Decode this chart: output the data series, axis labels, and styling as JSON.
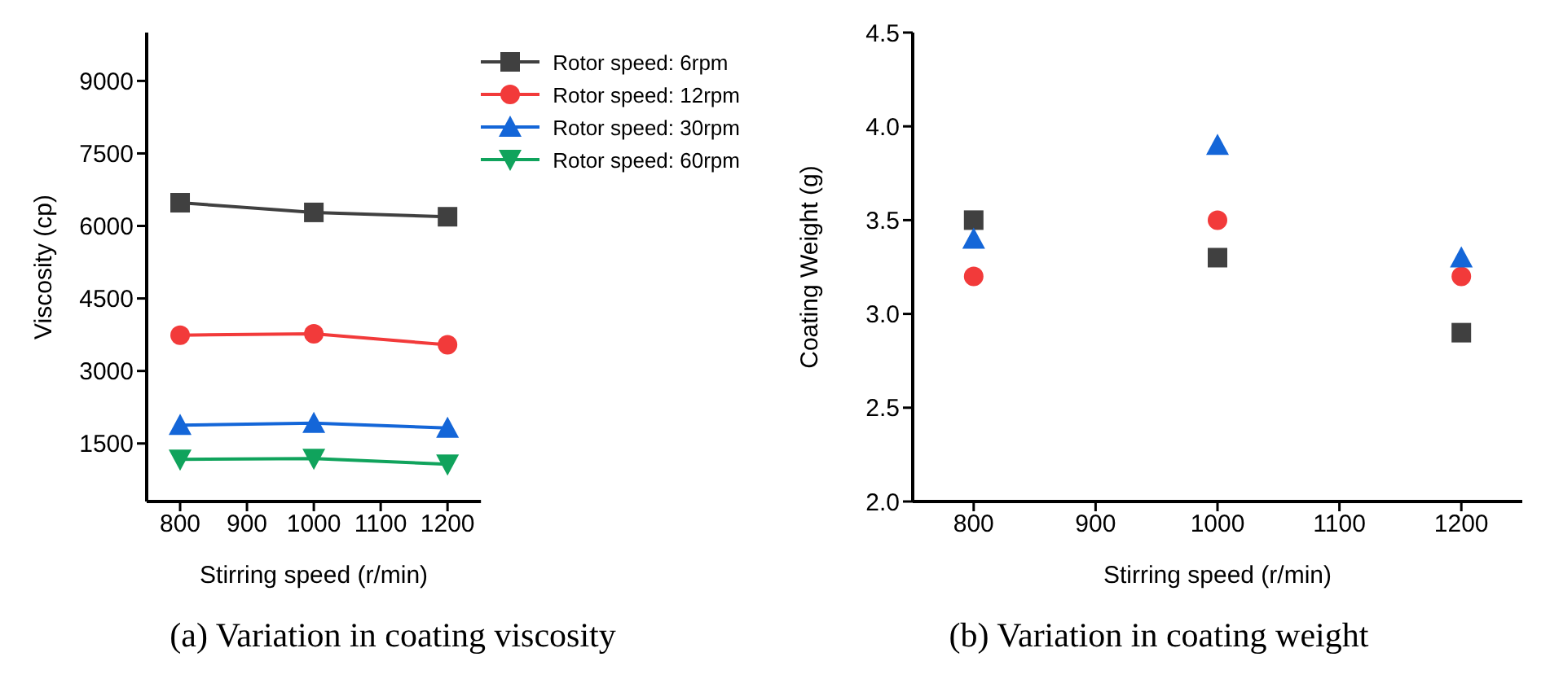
{
  "chart_data": [
    {
      "type": "line",
      "xlabel": "Stirring speed (r/min)",
      "ylabel": "Viscosity (cp)",
      "x": [
        800,
        1000,
        1200
      ],
      "xlim": [
        750,
        1250
      ],
      "xticks": [
        800,
        900,
        1000,
        1100,
        1200
      ],
      "ylim": [
        300,
        10000
      ],
      "yticks": [
        1500,
        3000,
        4500,
        6000,
        7500,
        9000
      ],
      "grid": false,
      "legend": "top right",
      "annotations": [
        "(a) Variation in coating viscosity"
      ],
      "series": [
        {
          "name": "Rotor speed: 6rpm",
          "color": "#404040",
          "marker": "square",
          "values": [
            6480,
            6280,
            6190
          ]
        },
        {
          "name": "Rotor speed: 12rpm",
          "color": "#f23a3a",
          "marker": "circle",
          "values": [
            3740,
            3770,
            3540
          ]
        },
        {
          "name": "Rotor speed: 30rpm",
          "color": "#1466d8",
          "marker": "triangle",
          "values": [
            1880,
            1920,
            1820
          ]
        },
        {
          "name": "Rotor speed: 60rpm",
          "color": "#10a35c",
          "marker": "triangle-down",
          "values": [
            1170,
            1190,
            1070
          ]
        }
      ]
    },
    {
      "type": "scatter",
      "xlabel": "Stirring speed (r/min)",
      "ylabel": "Coating Weight (g)",
      "x": [
        800,
        1000,
        1200
      ],
      "xlim": [
        750,
        1250
      ],
      "xticks": [
        800,
        900,
        1000,
        1100,
        1200
      ],
      "ylim": [
        2.0,
        4.5
      ],
      "yticks": [
        {
          "value": 2.0,
          "label": "2.0"
        },
        2.5,
        {
          "value": 3.0,
          "label": "3.0"
        },
        3.5,
        {
          "value": 4.0,
          "label": "4.0"
        },
        4.5
      ],
      "grid": false,
      "annotations": [
        "(b) Variation in coating weight"
      ],
      "series": [
        {
          "color": "#404040",
          "marker": "square",
          "values": [
            3.5,
            3.3,
            2.9
          ]
        },
        {
          "color": "#f23a3a",
          "marker": "circle",
          "values": [
            3.2,
            3.5,
            3.2
          ]
        },
        {
          "color": "#1466d8",
          "marker": "triangle",
          "values": [
            3.4,
            3.9,
            3.3
          ]
        }
      ]
    }
  ]
}
